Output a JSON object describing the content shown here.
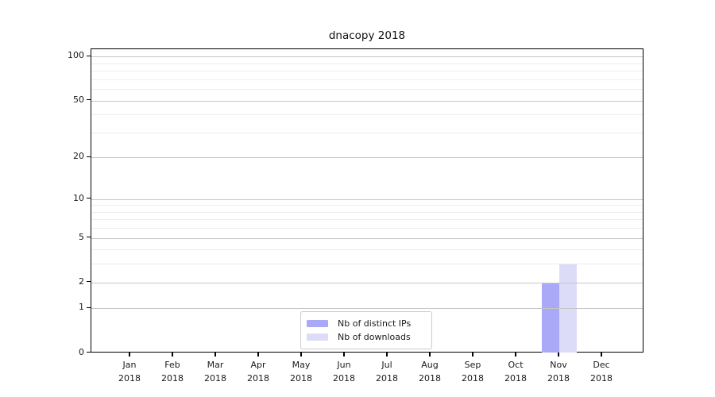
{
  "chart_data": {
    "type": "bar",
    "title": "dnacopy 2018",
    "categories": [
      "Jan",
      "Feb",
      "Mar",
      "Apr",
      "May",
      "Jun",
      "Jul",
      "Aug",
      "Sep",
      "Oct",
      "Nov",
      "Dec"
    ],
    "x_sublabel": "2018",
    "series": [
      {
        "name": "Nb of distinct IPs",
        "color": "#a9a9f7",
        "values": [
          0,
          0,
          0,
          0,
          0,
          0,
          0,
          0,
          0,
          0,
          2,
          0
        ]
      },
      {
        "name": "Nb of downloads",
        "color": "#dcdcf9",
        "values": [
          0,
          0,
          0,
          0,
          0,
          0,
          0,
          0,
          0,
          0,
          3,
          0
        ]
      }
    ],
    "yscale": "log1p",
    "ylim": [
      0,
      113
    ],
    "y_major_ticks": [
      0,
      1,
      2,
      5,
      10,
      20,
      50,
      100
    ],
    "y_minor_gridlines": [
      3,
      4,
      6,
      7,
      8,
      9,
      30,
      40,
      60,
      70,
      80,
      90
    ],
    "grid": true,
    "legend_position": "bottom-center"
  },
  "colors": {
    "major_grid": "#c6c6c6",
    "minor_grid": "#ededed",
    "axis": "#000000",
    "text": "#1a1a1a"
  }
}
